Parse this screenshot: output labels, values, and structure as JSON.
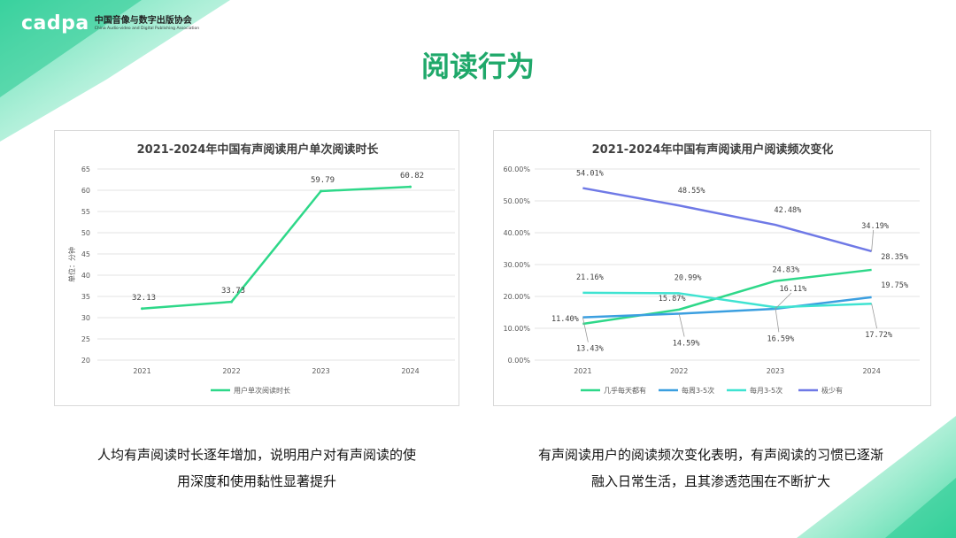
{
  "header": {
    "logo_word": "cadpa",
    "org_cn": "中国音像与数字出版协会",
    "org_en": "China Audio-video and Digital Publishing Association"
  },
  "page_title": "阅读行为",
  "colors": {
    "accent": "#1fa86a",
    "line_green": "#2ed889",
    "line_blue": "#3b9fe0",
    "line_cyan": "#3fe3d1",
    "line_purple": "#6f79e6"
  },
  "chart_data": [
    {
      "type": "line",
      "title": "2021-2024年中国有声阅读用户单次阅读时长",
      "ylabel": "单位：分钟",
      "categories": [
        "2021",
        "2022",
        "2023",
        "2024"
      ],
      "ylim": [
        20,
        65
      ],
      "yticks": [
        "20",
        "25",
        "30",
        "35",
        "40",
        "45",
        "50",
        "55",
        "60",
        "65"
      ],
      "series": [
        {
          "name": "用户单次阅读时长",
          "values": [
            32.13,
            33.73,
            59.79,
            60.82
          ],
          "labels": [
            "32.13",
            "33.73",
            "59.79",
            "60.82"
          ]
        }
      ],
      "legend": "bottom",
      "grid": true
    },
    {
      "type": "line",
      "title": "2021-2024年中国有声阅读用户阅读频次变化",
      "categories": [
        "2021",
        "2022",
        "2023",
        "2024"
      ],
      "ylim": [
        0,
        60
      ],
      "yticks": [
        "0.00%",
        "10.00%",
        "20.00%",
        "30.00%",
        "40.00%",
        "50.00%",
        "60.00%"
      ],
      "series": [
        {
          "name": "几乎每天都有",
          "values": [
            11.4,
            15.87,
            24.83,
            28.35
          ],
          "labels": [
            "11.40%",
            "15.87%",
            "24.83%",
            "28.35%"
          ]
        },
        {
          "name": "每周3-5次",
          "values": [
            13.43,
            14.59,
            16.11,
            19.75
          ],
          "labels": [
            "13.43%",
            "14.59%",
            "16.11%",
            "19.75%"
          ]
        },
        {
          "name": "每月3-5次",
          "values": [
            21.16,
            20.99,
            16.59,
            17.72
          ],
          "labels": [
            "21.16%",
            "20.99%",
            "16.59%",
            "17.72%"
          ]
        },
        {
          "name": "极少有",
          "values": [
            54.01,
            48.55,
            42.48,
            34.19
          ],
          "labels": [
            "54.01%",
            "48.55%",
            "42.48%",
            "34.19%"
          ]
        }
      ],
      "legend": "bottom",
      "grid": true
    }
  ],
  "captions": {
    "left_line1": "人均有声阅读时长逐年增加，说明用户对有声阅读的使",
    "left_line2": "用深度和使用黏性显著提升",
    "right_line1": "有声阅读用户的阅读频次变化表明，有声阅读的习惯已逐渐",
    "right_line2": "融入日常生活，且其渗透范围在不断扩大"
  }
}
